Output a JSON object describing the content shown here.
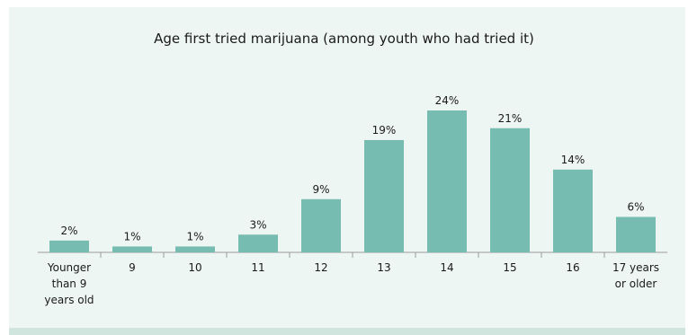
{
  "chart_data": {
    "type": "bar",
    "title": "Age first tried marijuana (among youth who had tried it)",
    "xlabel": "",
    "ylabel": "",
    "categories": [
      [
        "Younger",
        "than 9",
        "years old"
      ],
      [
        "9"
      ],
      [
        "10"
      ],
      [
        "11"
      ],
      [
        "12"
      ],
      [
        "13"
      ],
      [
        "14"
      ],
      [
        "15"
      ],
      [
        "16"
      ],
      [
        "17 years",
        "or older"
      ]
    ],
    "values": [
      2,
      1,
      1,
      3,
      9,
      19,
      24,
      21,
      14,
      6
    ],
    "value_labels": [
      "2%",
      "1%",
      "1%",
      "3%",
      "9%",
      "19%",
      "24%",
      "21%",
      "14%",
      "6%"
    ],
    "ylim": [
      0,
      24
    ],
    "grid": false,
    "bar_color": "#76bcb0",
    "axis_color": "#9a9a9a",
    "background": "#eef6f3"
  }
}
